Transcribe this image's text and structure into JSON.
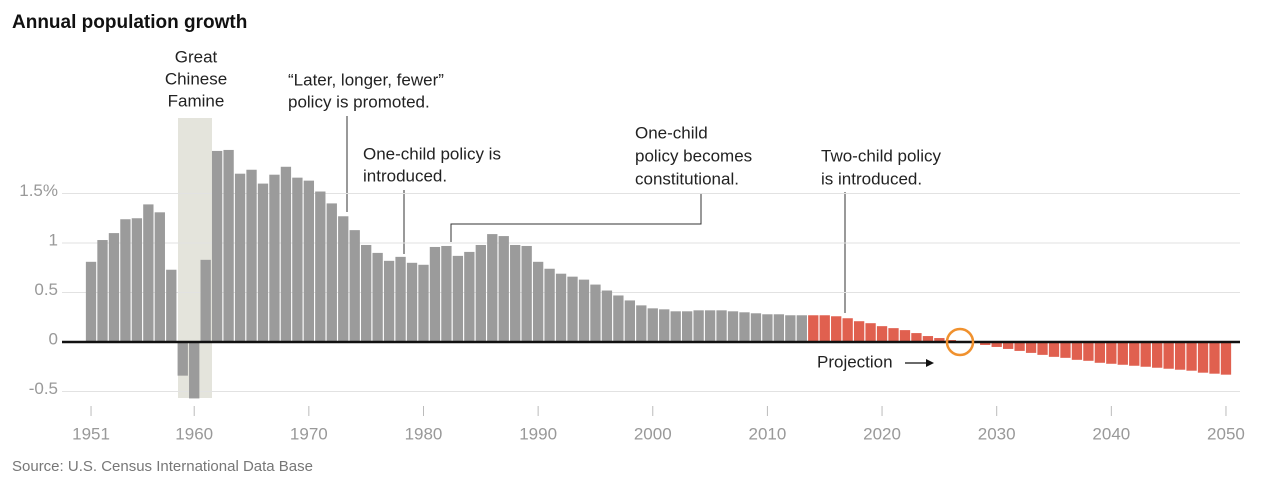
{
  "chart_data": {
    "type": "bar",
    "title": "Annual population growth",
    "source": "Source: U.S. Census International Data Base",
    "series": [
      {
        "color": "#9b9b9b",
        "x": [
          1951,
          1952,
          1953,
          1954,
          1955,
          1956,
          1957,
          1958,
          1959,
          1960,
          1961,
          1962,
          1963,
          1964,
          1965,
          1966,
          1967,
          1968,
          1969,
          1970,
          1971,
          1972,
          1973,
          1974,
          1975,
          1976,
          1977,
          1978,
          1979,
          1980,
          1981,
          1982,
          1983,
          1984,
          1985,
          1986,
          1987,
          1988,
          1989,
          1990,
          1991,
          1992,
          1993,
          1994,
          1995,
          1996,
          1997,
          1998,
          1999,
          2000,
          2001,
          2002,
          2003,
          2004,
          2005,
          2006,
          2007,
          2008,
          2009,
          2010,
          2011,
          2012,
          2013
        ],
        "values": [
          0.81,
          1.03,
          1.1,
          1.24,
          1.25,
          1.39,
          1.31,
          0.73,
          -0.34,
          -0.57,
          0.83,
          1.93,
          1.94,
          1.7,
          1.74,
          1.6,
          1.69,
          1.77,
          1.66,
          1.63,
          1.52,
          1.4,
          1.27,
          1.13,
          0.98,
          0.9,
          0.82,
          0.86,
          0.8,
          0.78,
          0.96,
          0.97,
          0.87,
          0.91,
          0.98,
          1.09,
          1.07,
          0.98,
          0.97,
          0.81,
          0.74,
          0.69,
          0.66,
          0.63,
          0.58,
          0.52,
          0.47,
          0.42,
          0.37,
          0.34,
          0.33,
          0.31,
          0.31,
          0.32,
          0.32,
          0.32,
          0.31,
          0.3,
          0.29,
          0.28,
          0.28,
          0.27,
          0.27
        ]
      },
      {
        "name": "Projection",
        "color": "#e0604f",
        "x": [
          2014,
          2015,
          2016,
          2017,
          2018,
          2019,
          2020,
          2021,
          2022,
          2023,
          2024,
          2025,
          2026,
          2027,
          2028,
          2029,
          2030,
          2031,
          2032,
          2033,
          2034,
          2035,
          2036,
          2037,
          2038,
          2039,
          2040,
          2041,
          2042,
          2043,
          2044,
          2045,
          2046,
          2047,
          2048,
          2049,
          2050
        ],
        "values": [
          0.27,
          0.27,
          0.26,
          0.24,
          0.21,
          0.19,
          0.16,
          0.14,
          0.12,
          0.09,
          0.06,
          0.04,
          0.02,
          0.01,
          0,
          -0.03,
          -0.05,
          -0.07,
          -0.09,
          -0.11,
          -0.13,
          -0.15,
          -0.16,
          -0.18,
          -0.19,
          -0.21,
          -0.22,
          -0.23,
          -0.24,
          -0.25,
          -0.26,
          -0.27,
          -0.28,
          -0.29,
          -0.31,
          -0.32,
          -0.33
        ]
      }
    ],
    "xlim": [
      1950.5,
      2050.5
    ],
    "xticks": [
      1951,
      1960,
      1970,
      1980,
      1990,
      2000,
      2010,
      2020,
      2030,
      2040,
      2050
    ],
    "ylim": [
      -0.6,
      2.0
    ],
    "yticks": [
      {
        "value": 1.5,
        "label": "1.5%"
      },
      1,
      0.5,
      0,
      -0.5
    ],
    "grid": true,
    "annotations": [
      {
        "text": [
          "Great",
          "Chinese",
          "Famine"
        ]
      },
      {
        "text": [
          "“Later, longer, fewer”",
          "policy is promoted."
        ]
      },
      {
        "text": [
          "One-child policy is",
          "introduced."
        ]
      },
      {
        "text": [
          "One-child",
          "policy becomes",
          "constitutional."
        ]
      },
      {
        "text": [
          "Two-child policy",
          "is introduced."
        ]
      }
    ]
  }
}
